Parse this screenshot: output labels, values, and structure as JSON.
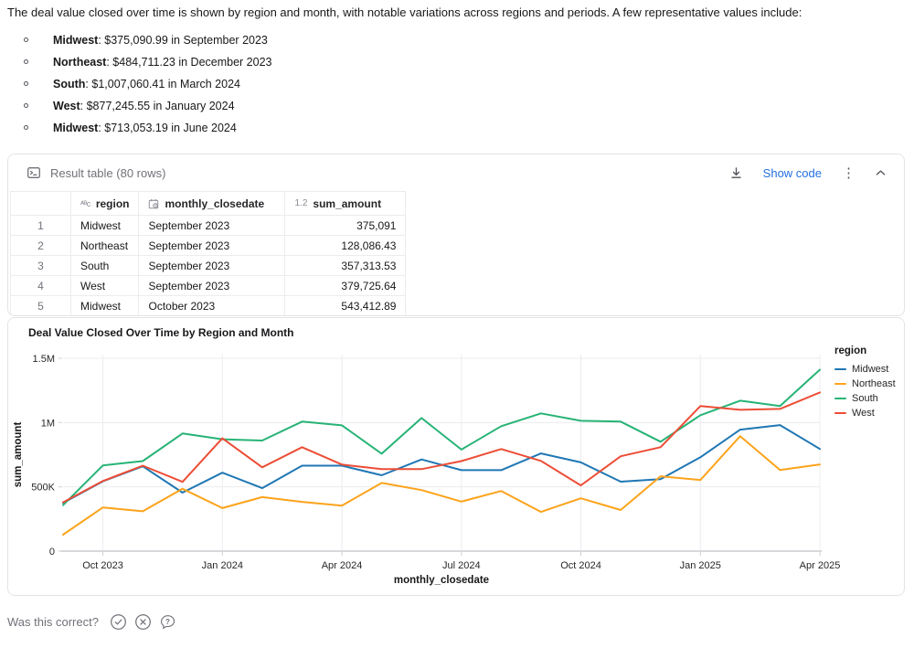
{
  "intro": {
    "paragraph": "The deal value closed over time is shown by region and month, with notable variations across regions and periods. A few representative values include:",
    "bullets": [
      {
        "region": "Midwest",
        "detail": ": $375,090.99 in September 2023"
      },
      {
        "region": "Northeast",
        "detail": ": $484,711.23 in December 2023"
      },
      {
        "region": "South",
        "detail": ": $1,007,060.41 in March 2024"
      },
      {
        "region": "West",
        "detail": ": $877,245.55 in January 2024"
      },
      {
        "region": "Midwest",
        "detail": ": $713,053.19 in June 2024"
      }
    ]
  },
  "result_table": {
    "title": "Result table (80 rows)",
    "show_code_label": "Show code",
    "columns": [
      {
        "label": "region",
        "type": "text"
      },
      {
        "label": "monthly_closedate",
        "type": "date"
      },
      {
        "label": "sum_amount",
        "type": "number"
      }
    ],
    "rows": [
      {
        "num": "1",
        "region": "Midwest",
        "monthly_closedate": "September 2023",
        "sum_amount": "375,091"
      },
      {
        "num": "2",
        "region": "Northeast",
        "monthly_closedate": "September 2023",
        "sum_amount": "128,086.43"
      },
      {
        "num": "3",
        "region": "South",
        "monthly_closedate": "September 2023",
        "sum_amount": "357,313.53"
      },
      {
        "num": "4",
        "region": "West",
        "monthly_closedate": "September 2023",
        "sum_amount": "379,725.64"
      },
      {
        "num": "5",
        "region": "Midwest",
        "monthly_closedate": "October 2023",
        "sum_amount": "543,412.89"
      }
    ]
  },
  "chart_data": {
    "type": "line",
    "title": "Deal Value Closed Over Time by Region and Month",
    "xlabel": "monthly_closedate",
    "ylabel": "sum_amount",
    "legend_title": "region",
    "legend_position": "right",
    "grid": true,
    "ylim": [
      0,
      1500000
    ],
    "yticks": [
      {
        "value": 0,
        "label": "0"
      },
      {
        "value": 500000,
        "label": "500K"
      },
      {
        "value": 1000000,
        "label": "1M"
      },
      {
        "value": 1500000,
        "label": "1.5M"
      }
    ],
    "x": [
      "Sep 2023",
      "Oct 2023",
      "Nov 2023",
      "Dec 2023",
      "Jan 2024",
      "Feb 2024",
      "Mar 2024",
      "Apr 2024",
      "May 2024",
      "Jun 2024",
      "Jul 2024",
      "Aug 2024",
      "Sep 2024",
      "Oct 2024",
      "Nov 2024",
      "Dec 2024",
      "Jan 2025",
      "Feb 2025",
      "Mar 2025",
      "Apr 2025"
    ],
    "xticks": [
      {
        "index": 1,
        "label": "Oct 2023"
      },
      {
        "index": 4,
        "label": "Jan 2024"
      },
      {
        "index": 7,
        "label": "Apr 2024"
      },
      {
        "index": 10,
        "label": "Jul 2024"
      },
      {
        "index": 13,
        "label": "Oct 2024"
      },
      {
        "index": 16,
        "label": "Jan 2025"
      },
      {
        "index": 19,
        "label": "Apr 2025"
      }
    ],
    "series": [
      {
        "name": "Midwest",
        "color": "#1f77b4",
        "values": [
          375091,
          543413,
          660000,
          455000,
          610000,
          490000,
          665000,
          665000,
          590000,
          713053,
          630000,
          630000,
          760000,
          690000,
          540000,
          560000,
          730000,
          945000,
          980000,
          795000
        ]
      },
      {
        "name": "Northeast",
        "color": "#fca31b",
        "values": [
          128086,
          340000,
          310000,
          484711,
          335000,
          420000,
          383000,
          354000,
          530000,
          475000,
          385000,
          468000,
          305000,
          411000,
          320000,
          582000,
          553000,
          894000,
          631000,
          674000
        ]
      },
      {
        "name": "South",
        "color": "#27b376",
        "values": [
          357314,
          667000,
          700000,
          915000,
          870000,
          860000,
          1007060,
          978000,
          758000,
          1035000,
          790000,
          972000,
          1071000,
          1014000,
          1007000,
          851000,
          1057000,
          1170000,
          1128000,
          1411000
        ]
      },
      {
        "name": "West",
        "color": "#ec4d36",
        "values": [
          379726,
          545000,
          665000,
          539000,
          877246,
          652000,
          808000,
          673000,
          638000,
          638000,
          700000,
          794000,
          702000,
          511000,
          738000,
          808000,
          1128000,
          1099000,
          1106000,
          1234000
        ]
      }
    ]
  },
  "feedback": {
    "question": "Was this correct?"
  }
}
